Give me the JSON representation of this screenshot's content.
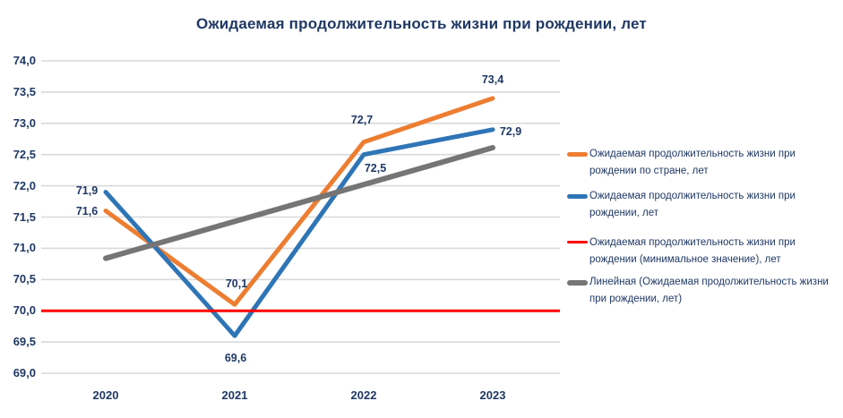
{
  "title": "Ожидаемая продолжительность жизни при рождении, лет",
  "colors": {
    "country": "#ED7D31",
    "region": "#2E75B6",
    "minimum": "#FF0000",
    "trend": "#757575",
    "text": "#1F3864",
    "gridline": "#D9D9D9",
    "background": "#FFFFFF"
  },
  "chart_data": {
    "type": "line",
    "title": "Ожидаемая продолжительность жизни при рождении, лет",
    "categories": [
      "2020",
      "2021",
      "2022",
      "2023"
    ],
    "series": [
      {
        "name": "Ожидаемая продолжительность жизни при рождении по стране, лет",
        "color_key": "country",
        "values": [
          71.6,
          70.1,
          72.7,
          73.4
        ],
        "labels": [
          "71,6",
          "70,1",
          "72,7",
          "73,4"
        ]
      },
      {
        "name": "Ожидаемая продолжительность жизни при рождении, лет",
        "color_key": "region",
        "values": [
          71.9,
          69.6,
          72.5,
          72.9
        ],
        "labels": [
          "71,9",
          "69,6",
          "72,5",
          "72,9"
        ]
      },
      {
        "name": "Ожидаемая продолжительность жизни при рождении (минимальное значение), лет",
        "color_key": "minimum",
        "full_width": true,
        "values": [
          70.0,
          70.0,
          70.0,
          70.0
        ]
      },
      {
        "name": "Линейная (Ожидаемая продолжительность жизни при рождении, лет)",
        "color_key": "trend",
        "trend": true,
        "values": [
          70.84,
          71.43,
          72.02,
          72.61
        ]
      }
    ],
    "ylim": [
      69.0,
      74.0
    ],
    "ytick_step": 0.5,
    "ytick_labels": [
      "74,0",
      "73,5",
      "73,0",
      "72,5",
      "72,0",
      "71,5",
      "71,0",
      "70,5",
      "70,0",
      "69,5",
      "69,0"
    ],
    "grid": true,
    "legend_position": "right",
    "decimal_separator": ","
  }
}
